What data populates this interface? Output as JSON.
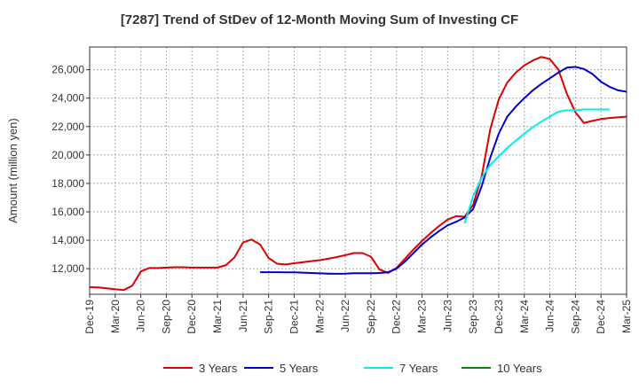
{
  "chart_data": {
    "type": "line",
    "title": "[7287]  Trend of StDev of 12-Month Moving Sum of Investing CF",
    "xlabel": "",
    "ylabel": "Amount (million yen)",
    "ylim": [
      10200,
      27600
    ],
    "yticks": [
      12000,
      14000,
      16000,
      18000,
      20000,
      22000,
      24000,
      26000
    ],
    "ytick_labels": [
      "12,000",
      "14,000",
      "16,000",
      "18,000",
      "20,000",
      "22,000",
      "24,000",
      "26,000"
    ],
    "xtick_labels": [
      "Dec-19",
      "Mar-20",
      "Jun-20",
      "Sep-20",
      "Dec-20",
      "Mar-21",
      "Jun-21",
      "Sep-21",
      "Dec-21",
      "Mar-22",
      "Jun-22",
      "Sep-22",
      "Dec-22",
      "Mar-23",
      "Jun-23",
      "Sep-23",
      "Dec-23",
      "Mar-24",
      "Jun-24",
      "Sep-24",
      "Dec-24",
      "Mar-25"
    ],
    "grid": true,
    "legend_position": "bottom",
    "colors": {
      "3 Years": "#dd0000",
      "5 Years": "#0000cc",
      "7 Years": "#00eeee",
      "10 Years": "#008800"
    },
    "series": [
      {
        "name": "3 Years",
        "start": "Dec-19",
        "values": [
          10700,
          10680,
          10620,
          10550,
          10500,
          10800,
          11800,
          12050,
          12050,
          12080,
          12100,
          12100,
          12080,
          12080,
          12080,
          12080,
          12250,
          12800,
          13850,
          14050,
          13700,
          12750,
          12350,
          12300,
          12380,
          12450,
          12530,
          12600,
          12700,
          12820,
          12950,
          13100,
          13100,
          12850,
          11950,
          11700,
          12050,
          12700,
          13350,
          13950,
          14500,
          15000,
          15450,
          15700,
          15650,
          16500,
          18500,
          21800,
          23900,
          25100,
          25800,
          26300,
          26650,
          26900,
          26750,
          26000,
          24300,
          23000,
          22250,
          22400,
          22530,
          22600,
          22650,
          22700
        ]
      },
      {
        "name": "5 Years",
        "start": "Aug-21",
        "values": [
          11750,
          11750,
          11750,
          11740,
          11740,
          11720,
          11700,
          11670,
          11650,
          11640,
          11650,
          11680,
          11680,
          11680,
          11700,
          11750,
          12000,
          12500,
          13100,
          13700,
          14200,
          14650,
          15050,
          15300,
          15600,
          16200,
          17800,
          19800,
          21500,
          22700,
          23400,
          24000,
          24550,
          25000,
          25400,
          25800,
          26150,
          26200,
          26050,
          25700,
          25150,
          24800,
          24550,
          24450
        ]
      },
      {
        "name": "7 Years",
        "start": "Aug-23",
        "values": [
          15200,
          17100,
          18400,
          19300,
          19900,
          20500,
          21000,
          21500,
          21950,
          22350,
          22700,
          23050,
          23150,
          23150,
          23200,
          23200,
          23200,
          23200
        ]
      },
      {
        "name": "10 Years",
        "start": "Dec-19",
        "values": []
      }
    ]
  }
}
